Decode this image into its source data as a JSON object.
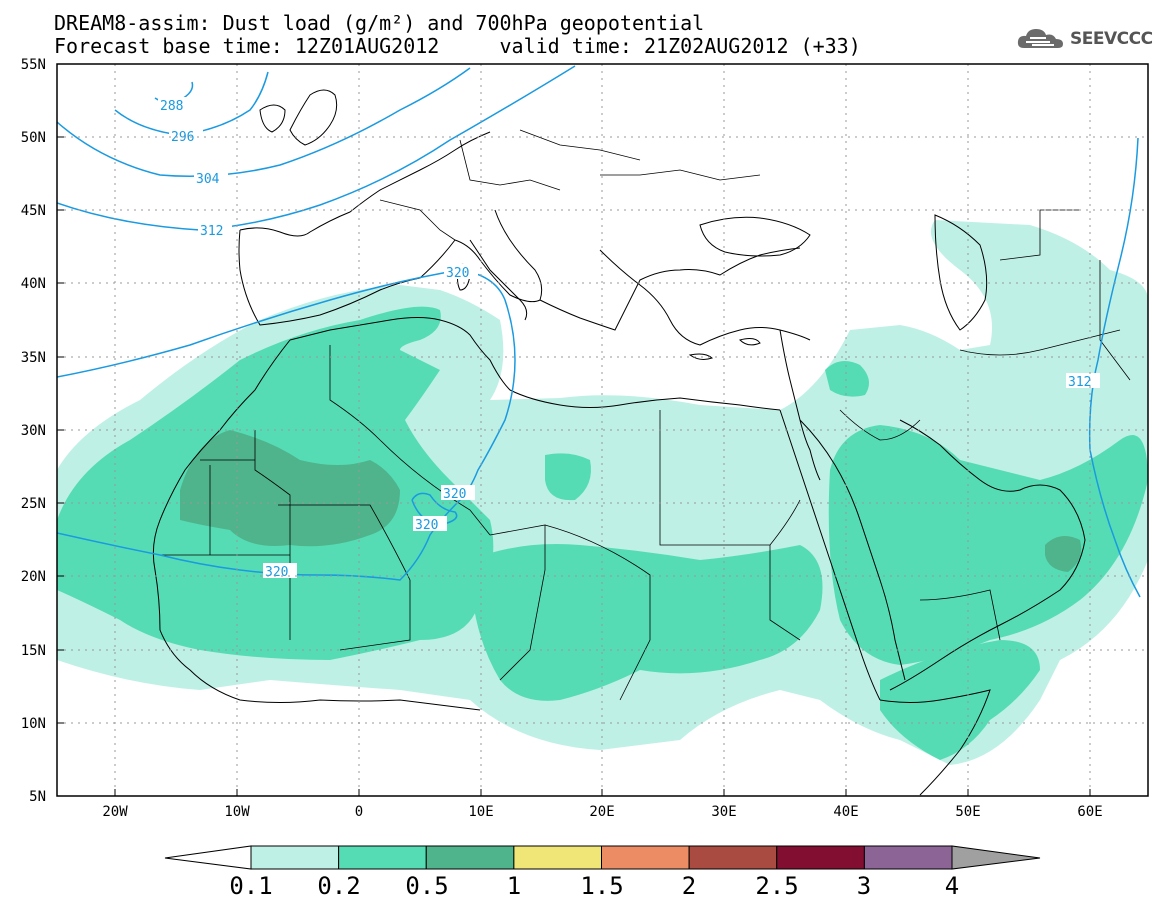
{
  "header": {
    "title_line1": "DREAM8-assim: Dust load (g/m²) and 700hPa geopotential",
    "title_line2": "Forecast base time: 12Z01AUG2012     valid time: 21Z02AUG2012 (+33)",
    "logo_text": "SEEVCCC"
  },
  "map": {
    "lon_range": [
      -25,
      65
    ],
    "lat_range": [
      5,
      55
    ],
    "lat_labels": [
      "55N",
      "50N",
      "45N",
      "40N",
      "35N",
      "30N",
      "25N",
      "20N",
      "15N",
      "10N",
      "5N"
    ],
    "lon_labels": [
      "20W",
      "10W",
      "0",
      "10E",
      "20E",
      "30E",
      "40E",
      "50E",
      "60E"
    ],
    "contour_labels": [
      "288",
      "296",
      "304",
      "312",
      "320",
      "320",
      "320",
      "320",
      "312"
    ],
    "contour_color": "#1a9ae0"
  },
  "colorbar": {
    "labels": [
      "0.1",
      "0.2",
      "0.5",
      "1",
      "1.5",
      "2",
      "2.5",
      "3",
      "4"
    ],
    "colors": [
      "#bff0e6",
      "#56dcb4",
      "#4fb48c",
      "#f0e678",
      "#eb8c64",
      "#aa4b41",
      "#820f32",
      "#8c6496",
      "#a0a0a0"
    ]
  }
}
